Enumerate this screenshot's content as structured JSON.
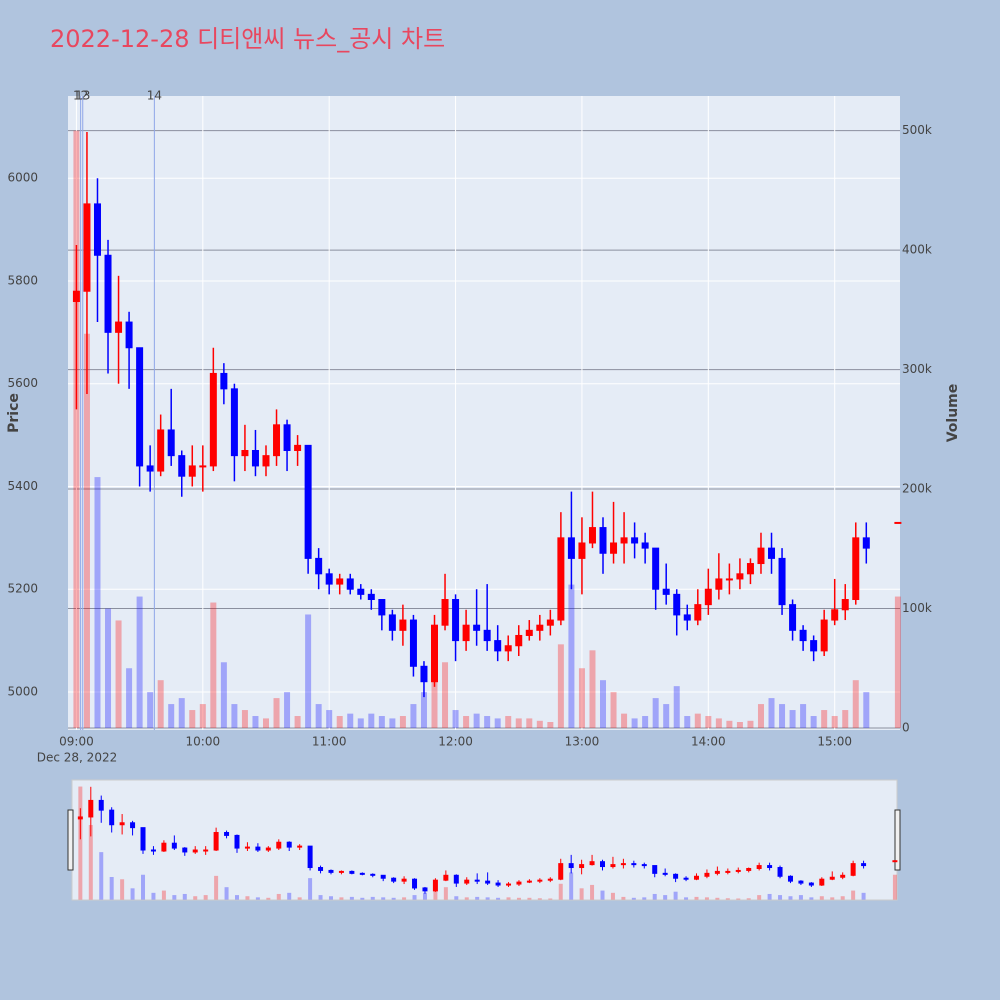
{
  "chart_data": {
    "type": "candlestick",
    "title": "2022-12-28 디티앤씨 뉴스_공시 차트",
    "y_label": "Price",
    "y2_label": "Volume",
    "date_label": "Dec 28, 2022",
    "increasing_color": "#ff0000",
    "decreasing_color": "#0000ff",
    "x": [
      "2022-12-28 09:00",
      "2022-12-28 09:05",
      "2022-12-28 09:10",
      "2022-12-28 09:15",
      "2022-12-28 09:20",
      "2022-12-28 09:25",
      "2022-12-28 09:30",
      "2022-12-28 09:35",
      "2022-12-28 09:40",
      "2022-12-28 09:45",
      "2022-12-28 09:50",
      "2022-12-28 09:55",
      "2022-12-28 10:00",
      "2022-12-28 10:05",
      "2022-12-28 10:10",
      "2022-12-28 10:15",
      "2022-12-28 10:20",
      "2022-12-28 10:25",
      "2022-12-28 10:30",
      "2022-12-28 10:35",
      "2022-12-28 10:40",
      "2022-12-28 10:45",
      "2022-12-28 10:50",
      "2022-12-28 10:55",
      "2022-12-28 11:00",
      "2022-12-28 11:05",
      "2022-12-28 11:10",
      "2022-12-28 11:15",
      "2022-12-28 11:20",
      "2022-12-28 11:25",
      "2022-12-28 11:30",
      "2022-12-28 11:35",
      "2022-12-28 11:40",
      "2022-12-28 11:45",
      "2022-12-28 11:50",
      "2022-12-28 11:55",
      "2022-12-28 12:00",
      "2022-12-28 12:05",
      "2022-12-28 12:10",
      "2022-12-28 12:15",
      "2022-12-28 12:20",
      "2022-12-28 12:25",
      "2022-12-28 12:30",
      "2022-12-28 12:35",
      "2022-12-28 12:40",
      "2022-12-28 12:45",
      "2022-12-28 12:50",
      "2022-12-28 12:55",
      "2022-12-28 13:00",
      "2022-12-28 13:05",
      "2022-12-28 13:10",
      "2022-12-28 13:15",
      "2022-12-28 13:20",
      "2022-12-28 13:25",
      "2022-12-28 13:30",
      "2022-12-28 13:35",
      "2022-12-28 13:40",
      "2022-12-28 13:45",
      "2022-12-28 13:50",
      "2022-12-28 13:55",
      "2022-12-28 14:00",
      "2022-12-28 14:05",
      "2022-12-28 14:10",
      "2022-12-28 14:15",
      "2022-12-28 14:20",
      "2022-12-28 14:25",
      "2022-12-28 14:30",
      "2022-12-28 14:35",
      "2022-12-28 14:40",
      "2022-12-28 14:45",
      "2022-12-28 14:50",
      "2022-12-28 14:55",
      "2022-12-28 15:00",
      "2022-12-28 15:05",
      "2022-12-28 15:10",
      "2022-12-28 15:15",
      "2022-12-28 15:30"
    ],
    "open": [
      5760,
      5780,
      5950,
      5850,
      5700,
      5720,
      5670,
      5440,
      5430,
      5510,
      5460,
      5420,
      5440,
      5440,
      5620,
      5590,
      5460,
      5470,
      5440,
      5460,
      5520,
      5470,
      5480,
      5260,
      5230,
      5210,
      5220,
      5200,
      5190,
      5180,
      5150,
      5120,
      5140,
      5050,
      5020,
      5130,
      5180,
      5100,
      5130,
      5120,
      5100,
      5080,
      5090,
      5110,
      5120,
      5130,
      5140,
      5300,
      5260,
      5290,
      5320,
      5270,
      5290,
      5300,
      5290,
      5280,
      5200,
      5190,
      5150,
      5140,
      5170,
      5200,
      5220,
      5220,
      5230,
      5250,
      5280,
      5260,
      5170,
      5120,
      5100,
      5080,
      5140,
      5160,
      5180,
      5300,
      5330
    ],
    "high": [
      5870,
      6090,
      6000,
      5880,
      5810,
      5740,
      5670,
      5480,
      5540,
      5590,
      5470,
      5480,
      5480,
      5670,
      5640,
      5600,
      5520,
      5510,
      5480,
      5550,
      5530,
      5500,
      5480,
      5280,
      5240,
      5230,
      5230,
      5210,
      5200,
      5180,
      5160,
      5170,
      5150,
      5060,
      5150,
      5230,
      5190,
      5160,
      5200,
      5210,
      5130,
      5110,
      5130,
      5140,
      5150,
      5160,
      5350,
      5390,
      5340,
      5390,
      5340,
      5370,
      5350,
      5330,
      5310,
      5280,
      5250,
      5200,
      5170,
      5200,
      5240,
      5270,
      5250,
      5260,
      5260,
      5310,
      5310,
      5280,
      5180,
      5130,
      5110,
      5160,
      5220,
      5210,
      5330,
      5330,
      5330
    ],
    "low": [
      5550,
      5580,
      5720,
      5620,
      5600,
      5590,
      5400,
      5390,
      5420,
      5440,
      5380,
      5400,
      5390,
      5430,
      5560,
      5410,
      5430,
      5420,
      5420,
      5440,
      5430,
      5440,
      5230,
      5200,
      5190,
      5190,
      5190,
      5180,
      5160,
      5120,
      5100,
      5090,
      5030,
      4990,
      5010,
      5120,
      5060,
      5080,
      5090,
      5080,
      5060,
      5060,
      5070,
      5100,
      5100,
      5110,
      5130,
      5200,
      5190,
      5280,
      5230,
      5250,
      5250,
      5260,
      5250,
      5160,
      5170,
      5110,
      5120,
      5130,
      5150,
      5180,
      5190,
      5200,
      5210,
      5230,
      5230,
      5150,
      5100,
      5080,
      5060,
      5070,
      5130,
      5140,
      5170,
      5250,
      5330
    ],
    "close": [
      5780,
      5950,
      5850,
      5700,
      5720,
      5670,
      5440,
      5430,
      5510,
      5460,
      5420,
      5440,
      5440,
      5620,
      5590,
      5460,
      5470,
      5440,
      5460,
      5520,
      5470,
      5480,
      5260,
      5230,
      5210,
      5220,
      5200,
      5190,
      5180,
      5150,
      5120,
      5140,
      5050,
      5020,
      5130,
      5180,
      5100,
      5130,
      5120,
      5100,
      5080,
      5090,
      5110,
      5120,
      5130,
      5140,
      5300,
      5260,
      5290,
      5320,
      5270,
      5290,
      5300,
      5290,
      5280,
      5200,
      5190,
      5150,
      5140,
      5170,
      5200,
      5220,
      5220,
      5230,
      5250,
      5280,
      5260,
      5170,
      5120,
      5100,
      5080,
      5140,
      5160,
      5180,
      5300,
      5280,
      5330
    ],
    "volume": [
      500000,
      330000,
      210000,
      100000,
      90000,
      50000,
      110000,
      30000,
      40000,
      20000,
      25000,
      15000,
      20000,
      105000,
      55000,
      20000,
      15000,
      10000,
      8000,
      25000,
      30000,
      10000,
      95000,
      20000,
      15000,
      10000,
      12000,
      8000,
      12000,
      10000,
      8000,
      10000,
      20000,
      30000,
      40000,
      55000,
      15000,
      10000,
      12000,
      10000,
      8000,
      10000,
      8000,
      8000,
      6000,
      5000,
      70000,
      120000,
      50000,
      65000,
      40000,
      30000,
      12000,
      8000,
      10000,
      25000,
      20000,
      35000,
      10000,
      12000,
      10000,
      8000,
      6000,
      5000,
      6000,
      20000,
      25000,
      20000,
      15000,
      20000,
      10000,
      15000,
      10000,
      15000,
      40000,
      30000,
      110000
    ],
    "annotations": [
      {
        "x": "2022-12-28 09:02",
        "label": "12"
      },
      {
        "x": "2022-12-28 09:03",
        "label": "13"
      },
      {
        "x": "2022-12-28 09:37",
        "label": "14"
      }
    ],
    "xlim": [
      "2022-12-28 08:56",
      "2022-12-28 15:31"
    ],
    "xticks": [
      {
        "value": "2022-12-28 09:00",
        "label": "09:00"
      },
      {
        "value": "2022-12-28 10:00",
        "label": "10:00"
      },
      {
        "value": "2022-12-28 11:00",
        "label": "11:00"
      },
      {
        "value": "2022-12-28 12:00",
        "label": "12:00"
      },
      {
        "value": "2022-12-28 13:00",
        "label": "13:00"
      },
      {
        "value": "2022-12-28 14:00",
        "label": "14:00"
      },
      {
        "value": "2022-12-28 15:00",
        "label": "15:00"
      }
    ],
    "ylim": [
      4926,
      6160
    ],
    "yticks": [
      5000,
      5200,
      5400,
      5600,
      5800,
      6000
    ],
    "y2lim": [
      -1700,
      529000
    ],
    "y2ticks": [
      0,
      {
        "value": 100000,
        "label": "100k"
      },
      {
        "value": 200000,
        "label": "200k"
      },
      {
        "value": 300000,
        "label": "300k"
      },
      {
        "value": 400000,
        "label": "400k"
      },
      {
        "value": 500000,
        "label": "500k"
      }
    ],
    "grid": true
  }
}
